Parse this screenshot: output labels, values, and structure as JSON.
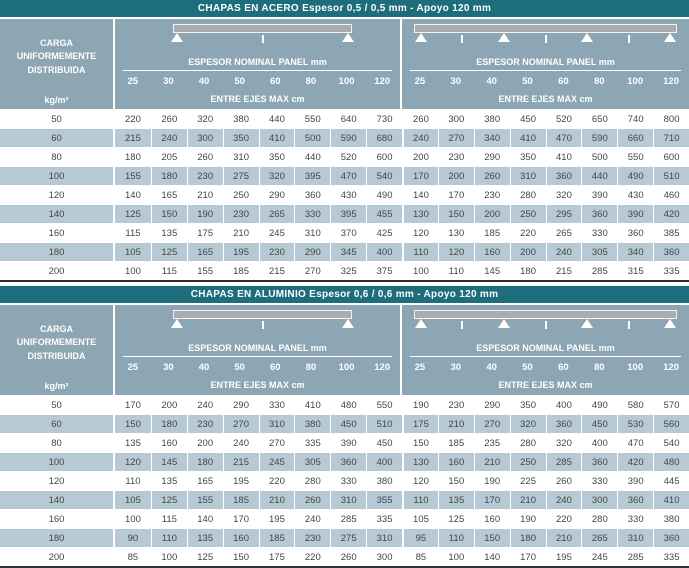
{
  "colors": {
    "title_bar": "#1d6d7d",
    "header_bg": "#8da6b4",
    "row_shaded": "#b7c9d4",
    "row_plain": "#ffffff",
    "cell_text": "#454545",
    "header_text": "#ffffff",
    "bottom_rule": "#2a3238",
    "diagram_bar": "#a9adb0"
  },
  "tables": [
    {
      "title": "CHAPAS EN ACERO Espesor 0,5 / 0,5 mm - Apoyo 120 mm",
      "row_header": {
        "label": "CARGA UNIFORMEMENTE DISTRIBUIDA",
        "unit": "kg/m²"
      },
      "groups": [
        {
          "panel_label": "ESPESOR NOMINAL PANEL mm",
          "axis_label": "ENTRE EJES MAX cm",
          "columns": [
            "25",
            "30",
            "40",
            "50",
            "60",
            "80",
            "100",
            "120"
          ],
          "supports": 2,
          "ticks": 1
        },
        {
          "panel_label": "ESPESOR NOMINAL PANEL mm",
          "axis_label": "ENTRE EJES MAX cm",
          "columns": [
            "25",
            "30",
            "40",
            "50",
            "60",
            "80",
            "100",
            "120"
          ],
          "supports": 4,
          "ticks": 3
        }
      ],
      "rows": [
        {
          "load": "50",
          "values": [
            [
              220,
              260,
              320,
              380,
              440,
              550,
              640,
              730
            ],
            [
              260,
              300,
              380,
              450,
              520,
              650,
              740,
              800
            ]
          ]
        },
        {
          "load": "60",
          "values": [
            [
              215,
              240,
              300,
              350,
              410,
              500,
              590,
              680
            ],
            [
              240,
              270,
              340,
              410,
              470,
              590,
              660,
              710
            ]
          ]
        },
        {
          "load": "80",
          "values": [
            [
              180,
              205,
              260,
              310,
              350,
              440,
              520,
              600
            ],
            [
              200,
              230,
              290,
              350,
              410,
              500,
              550,
              600
            ]
          ]
        },
        {
          "load": "100",
          "values": [
            [
              155,
              180,
              230,
              275,
              320,
              395,
              470,
              540
            ],
            [
              170,
              200,
              260,
              310,
              360,
              440,
              490,
              510
            ]
          ]
        },
        {
          "load": "120",
          "values": [
            [
              140,
              165,
              210,
              250,
              290,
              360,
              430,
              490
            ],
            [
              140,
              170,
              230,
              280,
              320,
              390,
              430,
              460
            ]
          ]
        },
        {
          "load": "140",
          "values": [
            [
              125,
              150,
              190,
              230,
              265,
              330,
              395,
              455
            ],
            [
              130,
              150,
              200,
              250,
              295,
              360,
              390,
              420
            ]
          ]
        },
        {
          "load": "160",
          "values": [
            [
              115,
              135,
              175,
              210,
              245,
              310,
              370,
              425
            ],
            [
              120,
              130,
              185,
              220,
              265,
              330,
              360,
              385
            ]
          ]
        },
        {
          "load": "180",
          "values": [
            [
              105,
              125,
              165,
              195,
              230,
              290,
              345,
              400
            ],
            [
              110,
              120,
              160,
              200,
              240,
              305,
              340,
              360
            ]
          ]
        },
        {
          "load": "200",
          "values": [
            [
              100,
              115,
              155,
              185,
              215,
              270,
              325,
              375
            ],
            [
              100,
              110,
              145,
              180,
              215,
              285,
              315,
              335
            ]
          ]
        }
      ]
    },
    {
      "title": "CHAPAS EN ALUMINIO Espesor 0,6 / 0,6 mm - Apoyo 120 mm",
      "row_header": {
        "label": "CARGA UNIFORMEMENTE DISTRIBUIDA",
        "unit": "kg/m²"
      },
      "groups": [
        {
          "panel_label": "ESPESOR NOMINAL PANEL mm",
          "axis_label": "ENTRE EJES MAX cm",
          "columns": [
            "25",
            "30",
            "40",
            "50",
            "60",
            "80",
            "100",
            "120"
          ],
          "supports": 2,
          "ticks": 1
        },
        {
          "panel_label": "ESPESOR NOMINAL PANEL mm",
          "axis_label": "ENTRE EJES MAX cm",
          "columns": [
            "25",
            "30",
            "40",
            "50",
            "60",
            "80",
            "100",
            "120"
          ],
          "supports": 4,
          "ticks": 3
        }
      ],
      "rows": [
        {
          "load": "50",
          "values": [
            [
              170,
              200,
              240,
              290,
              330,
              410,
              480,
              550
            ],
            [
              190,
              230,
              290,
              350,
              400,
              490,
              580,
              570
            ]
          ]
        },
        {
          "load": "60",
          "values": [
            [
              150,
              180,
              230,
              270,
              310,
              380,
              450,
              510
            ],
            [
              175,
              210,
              270,
              320,
              360,
              450,
              530,
              560
            ]
          ]
        },
        {
          "load": "80",
          "values": [
            [
              135,
              160,
              200,
              240,
              270,
              335,
              390,
              450
            ],
            [
              150,
              185,
              235,
              280,
              320,
              400,
              470,
              540
            ]
          ]
        },
        {
          "load": "100",
          "values": [
            [
              120,
              145,
              180,
              215,
              245,
              305,
              360,
              400
            ],
            [
              130,
              160,
              210,
              250,
              285,
              360,
              420,
              480
            ]
          ]
        },
        {
          "load": "120",
          "values": [
            [
              110,
              135,
              165,
              195,
              220,
              280,
              330,
              380
            ],
            [
              120,
              150,
              190,
              225,
              260,
              330,
              390,
              445
            ]
          ]
        },
        {
          "load": "140",
          "values": [
            [
              105,
              125,
              155,
              185,
              210,
              260,
              310,
              355
            ],
            [
              110,
              135,
              170,
              210,
              240,
              300,
              360,
              410
            ]
          ]
        },
        {
          "load": "160",
          "values": [
            [
              100,
              115,
              140,
              170,
              195,
              240,
              285,
              335
            ],
            [
              105,
              125,
              160,
              190,
              220,
              280,
              330,
              380
            ]
          ]
        },
        {
          "load": "180",
          "values": [
            [
              90,
              110,
              135,
              160,
              185,
              230,
              275,
              310
            ],
            [
              95,
              110,
              150,
              180,
              210,
              265,
              310,
              360
            ]
          ]
        },
        {
          "load": "200",
          "values": [
            [
              85,
              100,
              125,
              150,
              175,
              220,
              260,
              300
            ],
            [
              85,
              100,
              140,
              170,
              195,
              245,
              285,
              335
            ]
          ]
        }
      ]
    }
  ]
}
